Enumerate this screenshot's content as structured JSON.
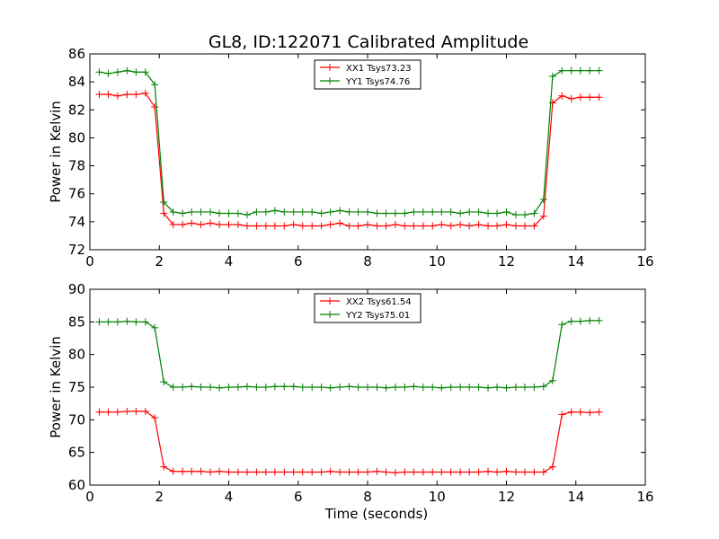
{
  "figure": {
    "title": "GL8, ID:122071 Calibrated Amplitude"
  },
  "chart_data": [
    {
      "type": "line",
      "title": "GL8, ID:122071 Calibrated Amplitude",
      "xlabel": "",
      "ylabel": "Power in Kelvin",
      "xlim": [
        0,
        16
      ],
      "ylim": [
        72,
        86
      ],
      "xticks": [
        "0",
        "2",
        "4",
        "6",
        "8",
        "10",
        "12",
        "14",
        "16"
      ],
      "yticks": [
        "72",
        "74",
        "76",
        "78",
        "80",
        "82",
        "84",
        "86"
      ],
      "grid": false,
      "legend_position": "top-center",
      "x": [
        0.27,
        0.53,
        0.8,
        1.07,
        1.33,
        1.6,
        1.87,
        2.13,
        2.4,
        2.67,
        2.93,
        3.2,
        3.47,
        3.73,
        4.0,
        4.27,
        4.53,
        4.8,
        5.07,
        5.33,
        5.6,
        5.87,
        6.13,
        6.4,
        6.67,
        6.93,
        7.2,
        7.47,
        7.73,
        8.0,
        8.27,
        8.53,
        8.8,
        9.07,
        9.33,
        9.6,
        9.87,
        10.13,
        10.4,
        10.67,
        10.93,
        11.2,
        11.47,
        11.73,
        12.0,
        12.27,
        12.53,
        12.8,
        13.07,
        13.33,
        13.6,
        13.87,
        14.13,
        14.4,
        14.67
      ],
      "series": [
        {
          "name": "XX1 Tsys73.23",
          "color": "#ff0000",
          "values": [
            83.1,
            83.1,
            83.0,
            83.1,
            83.1,
            83.2,
            82.2,
            74.6,
            73.8,
            73.8,
            73.9,
            73.8,
            73.9,
            73.8,
            73.8,
            73.8,
            73.7,
            73.7,
            73.7,
            73.7,
            73.7,
            73.8,
            73.7,
            73.7,
            73.7,
            73.8,
            73.9,
            73.7,
            73.7,
            73.8,
            73.7,
            73.7,
            73.8,
            73.7,
            73.7,
            73.7,
            73.7,
            73.8,
            73.7,
            73.8,
            73.7,
            73.8,
            73.7,
            73.7,
            73.8,
            73.7,
            73.7,
            73.7,
            74.4,
            82.5,
            83.0,
            82.8,
            82.9,
            82.9,
            82.9
          ]
        },
        {
          "name": "YY1 Tsys74.76",
          "color": "#008000",
          "values": [
            84.7,
            84.6,
            84.7,
            84.8,
            84.7,
            84.7,
            83.8,
            75.4,
            74.7,
            74.6,
            74.7,
            74.7,
            74.7,
            74.6,
            74.6,
            74.6,
            74.5,
            74.7,
            74.7,
            74.8,
            74.7,
            74.7,
            74.7,
            74.7,
            74.6,
            74.7,
            74.8,
            74.7,
            74.7,
            74.7,
            74.6,
            74.6,
            74.6,
            74.6,
            74.7,
            74.7,
            74.7,
            74.7,
            74.7,
            74.6,
            74.7,
            74.7,
            74.6,
            74.6,
            74.7,
            74.5,
            74.5,
            74.6,
            75.6,
            84.4,
            84.8,
            84.8,
            84.8,
            84.8,
            84.8
          ]
        }
      ]
    },
    {
      "type": "line",
      "title": "",
      "xlabel": "Time (seconds)",
      "ylabel": "Power in Kelvin",
      "xlim": [
        0,
        16
      ],
      "ylim": [
        60,
        90
      ],
      "xticks": [
        "0",
        "2",
        "4",
        "6",
        "8",
        "10",
        "12",
        "14",
        "16"
      ],
      "yticks": [
        "60",
        "65",
        "70",
        "75",
        "80",
        "85",
        "90"
      ],
      "grid": false,
      "legend_position": "top-center",
      "x": [
        0.27,
        0.53,
        0.8,
        1.07,
        1.33,
        1.6,
        1.87,
        2.13,
        2.4,
        2.67,
        2.93,
        3.2,
        3.47,
        3.73,
        4.0,
        4.27,
        4.53,
        4.8,
        5.07,
        5.33,
        5.6,
        5.87,
        6.13,
        6.4,
        6.67,
        6.93,
        7.2,
        7.47,
        7.73,
        8.0,
        8.27,
        8.53,
        8.8,
        9.07,
        9.33,
        9.6,
        9.87,
        10.13,
        10.4,
        10.67,
        10.93,
        11.2,
        11.47,
        11.73,
        12.0,
        12.27,
        12.53,
        12.8,
        13.07,
        13.33,
        13.6,
        13.87,
        14.13,
        14.4,
        14.67
      ],
      "series": [
        {
          "name": "XX2 Tsys61.54",
          "color": "#ff0000",
          "values": [
            71.2,
            71.2,
            71.2,
            71.3,
            71.3,
            71.3,
            70.3,
            62.8,
            62.1,
            62.1,
            62.1,
            62.1,
            62.0,
            62.1,
            62.0,
            62.0,
            62.0,
            62.0,
            62.0,
            62.0,
            62.0,
            62.0,
            62.0,
            62.0,
            62.0,
            62.1,
            62.0,
            62.0,
            62.0,
            62.0,
            62.1,
            62.0,
            61.9,
            62.0,
            62.0,
            62.0,
            62.0,
            62.0,
            62.0,
            62.0,
            62.0,
            62.0,
            62.1,
            62.0,
            62.1,
            62.0,
            62.0,
            62.0,
            62.0,
            62.8,
            70.8,
            71.2,
            71.2,
            71.1,
            71.2
          ]
        },
        {
          "name": "YY2 Tsys75.01",
          "color": "#008000",
          "values": [
            85.0,
            85.0,
            85.0,
            85.1,
            85.0,
            85.0,
            84.1,
            75.8,
            75.0,
            75.0,
            75.1,
            75.0,
            75.0,
            74.9,
            75.0,
            75.0,
            75.1,
            75.0,
            75.0,
            75.1,
            75.1,
            75.1,
            75.0,
            75.0,
            75.0,
            74.9,
            75.0,
            75.1,
            75.0,
            75.0,
            75.0,
            74.9,
            75.0,
            75.0,
            75.1,
            75.0,
            75.0,
            74.9,
            75.0,
            75.0,
            75.0,
            75.0,
            74.9,
            75.0,
            74.9,
            75.0,
            75.0,
            75.0,
            75.1,
            76.0,
            84.6,
            85.1,
            85.1,
            85.2,
            85.2
          ]
        }
      ]
    }
  ]
}
